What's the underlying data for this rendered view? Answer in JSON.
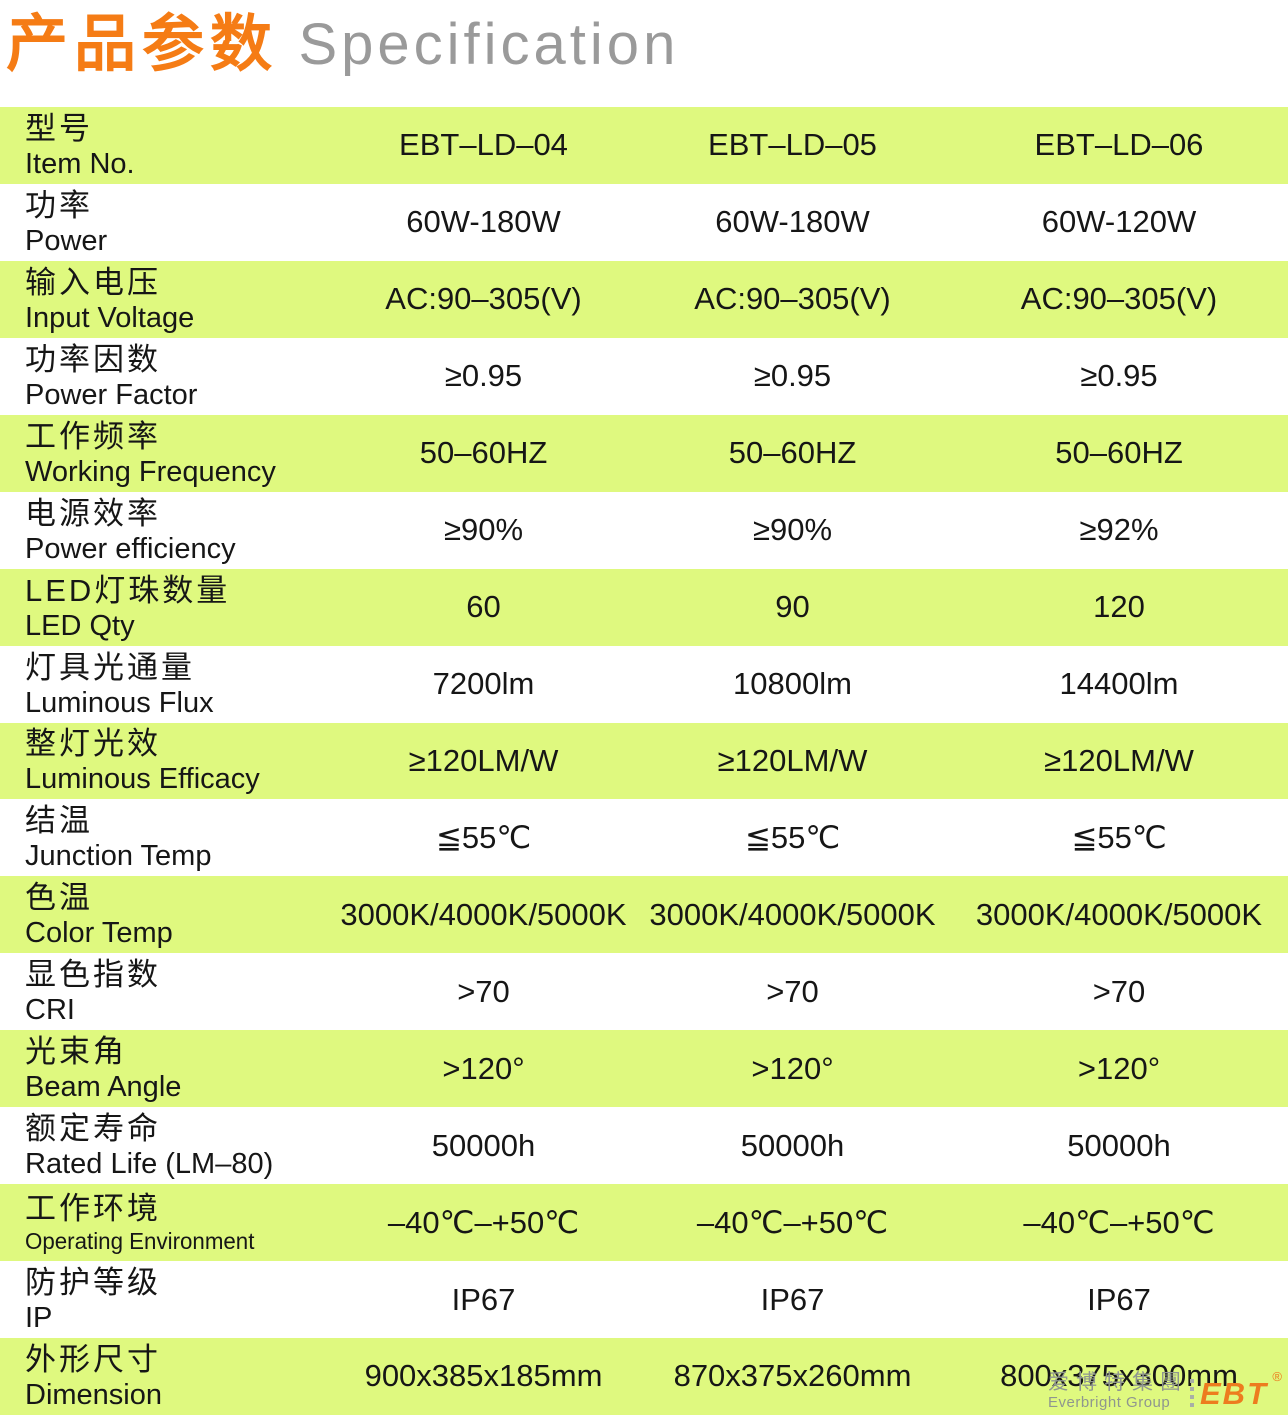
{
  "header": {
    "title_zh": "产品参数",
    "title_en": "Specification"
  },
  "table": {
    "rows": [
      {
        "label_zh": "型号",
        "label_en": "Item No.",
        "values": [
          "EBT–LD–04",
          "EBT–LD–05",
          "EBT–LD–06"
        ]
      },
      {
        "label_zh": "功率",
        "label_en": "Power",
        "values": [
          "60W-180W",
          "60W-180W",
          "60W-120W"
        ]
      },
      {
        "label_zh": "输入电压",
        "label_en": "Input Voltage",
        "values": [
          "AC:90–305(V)",
          "AC:90–305(V)",
          "AC:90–305(V)"
        ]
      },
      {
        "label_zh": "功率因数",
        "label_en": "Power Factor",
        "values": [
          "≥0.95",
          "≥0.95",
          "≥0.95"
        ]
      },
      {
        "label_zh": "工作频率",
        "label_en": "Working Frequency",
        "values": [
          "50–60HZ",
          "50–60HZ",
          "50–60HZ"
        ]
      },
      {
        "label_zh": "电源效率",
        "label_en": "Power efficiency",
        "values": [
          "≥90%",
          "≥90%",
          "≥92%"
        ]
      },
      {
        "label_zh": "LED灯珠数量",
        "label_en": "LED Qty",
        "values": [
          "60",
          "90",
          "120"
        ]
      },
      {
        "label_zh": "灯具光通量",
        "label_en": "Luminous Flux",
        "values": [
          "7200lm",
          "10800lm",
          "14400lm"
        ]
      },
      {
        "label_zh": "整灯光效",
        "label_en": "Luminous Efficacy",
        "values": [
          "≥120LM/W",
          "≥120LM/W",
          "≥120LM/W"
        ]
      },
      {
        "label_zh": "结温",
        "label_en": "Junction Temp",
        "values": [
          "≦55℃",
          "≦55℃",
          "≦55℃"
        ]
      },
      {
        "label_zh": "色温",
        "label_en": "Color Temp",
        "values": [
          "3000K/4000K/5000K",
          "3000K/4000K/5000K",
          "3000K/4000K/5000K"
        ]
      },
      {
        "label_zh": "显色指数",
        "label_en": "CRI",
        "values": [
          ">70",
          ">70",
          ">70"
        ]
      },
      {
        "label_zh": "光束角",
        "label_en": "Beam Angle",
        "values": [
          ">120°",
          ">120°",
          ">120°"
        ]
      },
      {
        "label_zh": "额定寿命",
        "label_en": "Rated Life (LM–80)",
        "values": [
          "50000h",
          "50000h",
          "50000h"
        ]
      },
      {
        "label_zh": "工作环境",
        "label_en": "Operating Environment",
        "values": [
          "–40℃–+50℃",
          "–40℃–+50℃",
          "–40℃–+50℃"
        ]
      },
      {
        "label_zh": "防护等级",
        "label_en": "IP",
        "values": [
          "IP67",
          "IP67",
          "IP67"
        ]
      },
      {
        "label_zh": "外形尺寸",
        "label_en": "Dimension",
        "values": [
          "900x385x185mm",
          "870x375x260mm",
          "800x375x300mm"
        ]
      }
    ]
  },
  "logo": {
    "group_zh": "爱博特集團",
    "group_en": "Everbright Group",
    "brand": "EBT",
    "reg": "®"
  },
  "colors": {
    "row_highlight": "#DFF97F",
    "title_accent": "#F57C15",
    "title_secondary": "#9A9A9A",
    "logo_orange": "#ED7C1E",
    "logo_gray": "#8F968F",
    "text": "#161616"
  }
}
